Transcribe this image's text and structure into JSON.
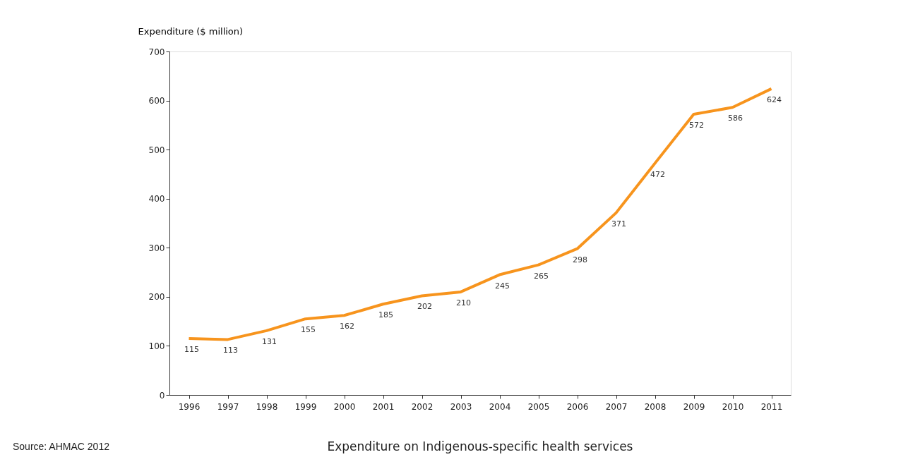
{
  "chart_data": {
    "type": "line",
    "title": "Expenditure on Indigenous-specific health services",
    "ylabel": "Expenditure  ($ million)",
    "annotations": [
      "Source: AHMAC 2012"
    ],
    "categories": [
      "1996",
      "1997",
      "1998",
      "1999",
      "2000",
      "2001",
      "2002",
      "2003",
      "2004",
      "2005",
      "2006",
      "2007",
      "2008",
      "2009",
      "2010",
      "2011"
    ],
    "series": [
      {
        "color": "#f7941d",
        "values": [
          115,
          113,
          131,
          155,
          162,
          185,
          202,
          210,
          245,
          265,
          298,
          371,
          472,
          572,
          586,
          624
        ]
      }
    ],
    "ylim": [
      0,
      700
    ],
    "yticks": [
      0,
      100,
      200,
      300,
      400,
      500,
      600,
      700
    ],
    "grid": false,
    "legend": false,
    "data_labels": true
  }
}
